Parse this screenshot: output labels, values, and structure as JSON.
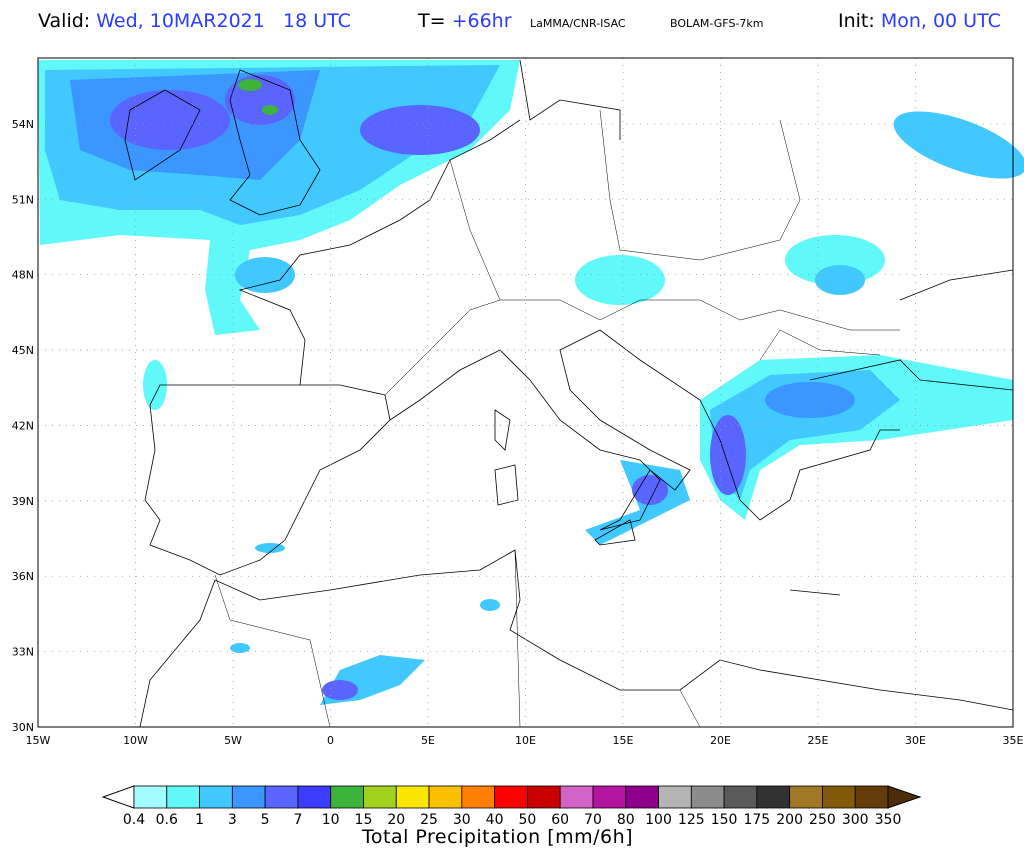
{
  "header": {
    "valid_label": "Valid:",
    "valid_value": "Wed, 10MAR2021   18 UTC",
    "t_label": "T=",
    "t_value": "+66hr",
    "source": "LaMMA/CNR-ISAC",
    "model": "BOLAM-GFS-7km",
    "init_label": "Init:",
    "init_value": "Mon, 00 UTC"
  },
  "map": {
    "lat_labels": [
      "30N",
      "33N",
      "36N",
      "39N",
      "42N",
      "45N",
      "48N",
      "51N",
      "54N"
    ],
    "lon_labels": [
      "15W",
      "10W",
      "5W",
      "0",
      "5E",
      "10E",
      "15E",
      "20E",
      "25E",
      "30E",
      "35E"
    ]
  },
  "colorbar": {
    "title": "Total Precipitation [mm/6h]",
    "levels": [
      "0.4",
      "0.6",
      "1",
      "3",
      "5",
      "7",
      "10",
      "15",
      "20",
      "25",
      "30",
      "40",
      "50",
      "60",
      "70",
      "80",
      "100",
      "125",
      "150",
      "175",
      "200",
      "250",
      "300",
      "350"
    ],
    "colors": [
      "#a0fcff",
      "#60f8f8",
      "#40c8ff",
      "#3c96ff",
      "#5a64ff",
      "#3c3cff",
      "#3cb43c",
      "#a0d21e",
      "#fae600",
      "#fac000",
      "#ff8000",
      "#ff0000",
      "#c80000",
      "#d264c8",
      "#b414a0",
      "#8c008c",
      "#b4b4b4",
      "#8c8c8c",
      "#5a5a5a",
      "#323232",
      "#a07828",
      "#825a0a",
      "#643c0a"
    ],
    "over_color": "#4b2d0a",
    "under_color": "#ffffff"
  }
}
